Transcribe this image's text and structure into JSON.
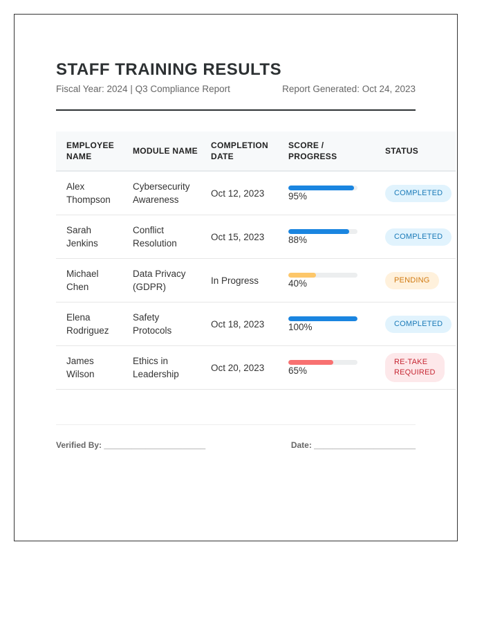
{
  "header": {
    "title": "STAFF TRAINING RESULTS",
    "subtitle_left": "Fiscal Year: 2024 | Q3 Compliance Report",
    "subtitle_right": "Report Generated: Oct 24, 2023"
  },
  "table": {
    "columns": [
      "EMPLOYEE NAME",
      "MODULE NAME",
      "COMPLETION DATE",
      "SCORE / PROGRESS",
      "STATUS"
    ],
    "rows": [
      {
        "name": "Alex Thompson",
        "module": "Cybersecurity Awareness",
        "date": "Oct 12, 2023",
        "score": 95,
        "score_label": "95%",
        "bar_color": "#1a85e0",
        "status": "COMPLETED",
        "status_type": "completed"
      },
      {
        "name": "Sarah Jenkins",
        "module": "Conflict Resolution",
        "date": "Oct 15, 2023",
        "score": 88,
        "score_label": "88%",
        "bar_color": "#1a85e0",
        "status": "COMPLETED",
        "status_type": "completed"
      },
      {
        "name": "Michael Chen",
        "module": "Data Privacy (GDPR)",
        "date": "In Progress",
        "score": 40,
        "score_label": "40%",
        "bar_color": "#fdc76a",
        "status": "PENDING",
        "status_type": "pending"
      },
      {
        "name": "Elena Rodriguez",
        "module": "Safety Protocols",
        "date": "Oct 18, 2023",
        "score": 100,
        "score_label": "100%",
        "bar_color": "#1a85e0",
        "status": "COMPLETED",
        "status_type": "completed"
      },
      {
        "name": "James Wilson",
        "module": "Ethics in Leadership",
        "date": "Oct 20, 2023",
        "score": 65,
        "score_label": "65%",
        "bar_color": "#f87171",
        "status": "RE-TAKE REQUIRED",
        "status_type": "retake"
      }
    ]
  },
  "footer": {
    "verified": "Verified By: ______________________",
    "date": "Date: ______________________"
  }
}
